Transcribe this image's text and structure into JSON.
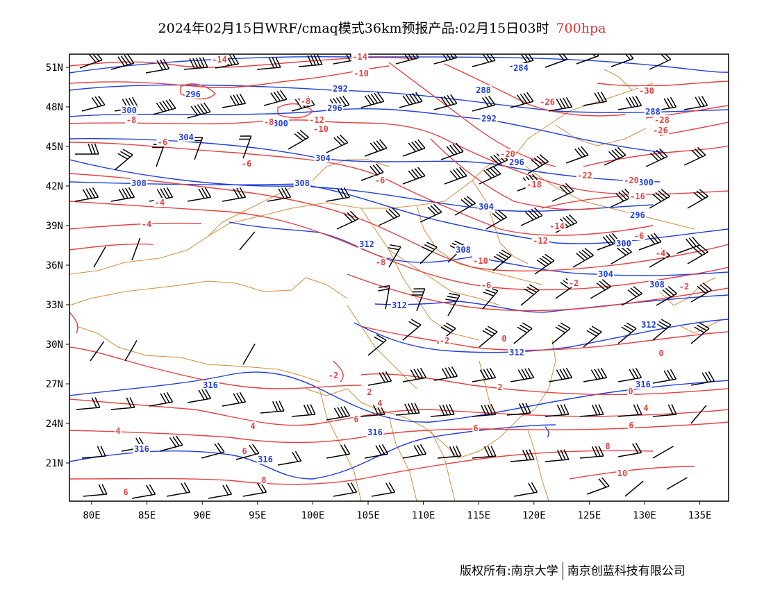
{
  "title": {
    "main": "2024年02月15日WRF/cmaq模式36km预报产品:02月15日03时",
    "level": "700hpa"
  },
  "map": {
    "lat_labels": [
      "51N",
      "48N",
      "45N",
      "42N",
      "39N",
      "36N",
      "33N",
      "30N",
      "27N",
      "24N",
      "21N"
    ],
    "lon_labels": [
      "80E",
      "85E",
      "90E",
      "95E",
      "100E",
      "105E",
      "110E",
      "115E",
      "120E",
      "125E",
      "130E",
      "135E"
    ],
    "height_labels": [
      "284",
      "288",
      "292",
      "296",
      "300",
      "304",
      "308",
      "312",
      "316"
    ],
    "temp_labels": [
      "-30",
      "-28",
      "-26",
      "-22",
      "-20",
      "-18",
      "-16",
      "-14",
      "-12",
      "-10",
      "-8",
      "-6",
      "-4",
      "-2",
      "0",
      "2",
      "4",
      "6",
      "8",
      "10"
    ],
    "colors": {
      "height": "#1f3fe0",
      "temperature": "#e84040",
      "border": "#d98a3a",
      "barb": "#000000"
    }
  },
  "footer": {
    "left": "版权所有:南京大学",
    "right": "南京创蓝科技有限公司"
  }
}
